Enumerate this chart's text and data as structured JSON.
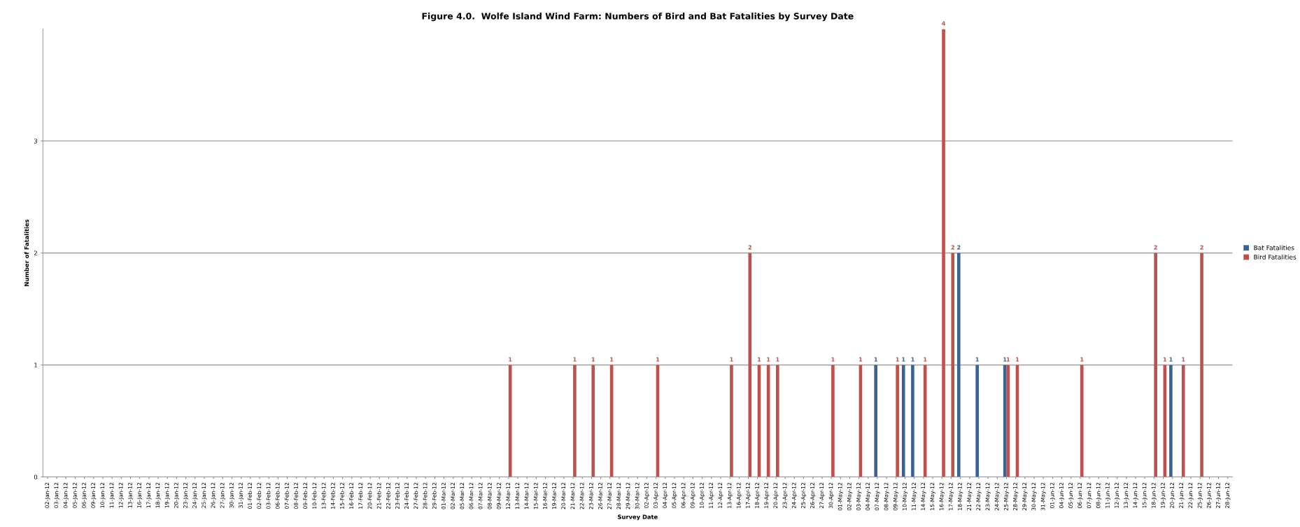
{
  "chart_data": {
    "type": "bar",
    "title": "Figure 4.0.  Wolfe Island Wind Farm: Numbers of Bird and Bat Fatalities by Survey Date",
    "xlabel": "Survey Date",
    "ylabel": "Number of Fatalities",
    "categories": [
      "02-Jan-12",
      "03-Jan-12",
      "04-Jan-12",
      "05-Jan-12",
      "06-Jan-12",
      "09-Jan-12",
      "10-Jan-12",
      "11-Jan-12",
      "12-Jan-12",
      "13-Jan-12",
      "16-Jan-12",
      "17-Jan-12",
      "18-Jan-12",
      "19-Jan-12",
      "20-Jan-12",
      "23-Jan-12",
      "24-Jan-12",
      "25-Jan-12",
      "26-Jan-12",
      "27-Jan-12",
      "30-Jan-12",
      "31-Jan-12",
      "01-Feb-12",
      "02-Feb-12",
      "03-Feb-12",
      "06-Feb-12",
      "07-Feb-12",
      "08-Feb-12",
      "09-Feb-12",
      "10-Feb-12",
      "13-Feb-12",
      "14-Feb-12",
      "15-Feb-12",
      "16-Feb-12",
      "17-Feb-12",
      "20-Feb-12",
      "21-Feb-12",
      "22-Feb-12",
      "23-Feb-12",
      "24-Feb-12",
      "27-Feb-12",
      "28-Feb-12",
      "29-Feb-12",
      "01-Mar-12",
      "02-Mar-12",
      "05-Mar-12",
      "06-Mar-12",
      "07-Mar-12",
      "08-Mar-12",
      "09-Mar-12",
      "12-Mar-12",
      "13-Mar-12",
      "14-Mar-12",
      "15-Mar-12",
      "16-Mar-12",
      "19-Mar-12",
      "20-Mar-12",
      "21-Mar-12",
      "22-Mar-12",
      "23-Mar-12",
      "26-Mar-12",
      "27-Mar-12",
      "28-Mar-12",
      "29-Mar-12",
      "30-Mar-12",
      "02-Apr-12",
      "03-Apr-12",
      "04-Apr-12",
      "05-Apr-12",
      "06-Apr-12",
      "09-Apr-12",
      "10-Apr-12",
      "11-Apr-12",
      "12-Apr-12",
      "13-Apr-12",
      "16-Apr-12",
      "17-Apr-12",
      "18-Apr-12",
      "19-Apr-12",
      "20-Apr-12",
      "23-Apr-12",
      "24-Apr-12",
      "25-Apr-12",
      "26-Apr-12",
      "27-Apr-12",
      "30-Apr-12",
      "01-May-12",
      "02-May-12",
      "03-May-12",
      "04-May-12",
      "07-May-12",
      "08-May-12",
      "09-May-12",
      "10-May-12",
      "11-May-12",
      "14-May-12",
      "15-May-12",
      "16-May-12",
      "17-May-12",
      "18-May-12",
      "21-May-12",
      "22-May-12",
      "23-May-12",
      "24-May-12",
      "25-May-12",
      "28-May-12",
      "29-May-12",
      "30-May-12",
      "31-May-12",
      "01-Jun-12",
      "04-Jun-12",
      "05-Jun-12",
      "06-Jun-12",
      "07-Jun-12",
      "08-Jun-12",
      "11-Jun-12",
      "12-Jun-12",
      "13-Jun-12",
      "14-Jun-12",
      "15-Jun-12",
      "18-Jun-12",
      "19-Jun-12",
      "20-Jun-12",
      "21-Jun-12",
      "22-Jun-12",
      "25-Jun-12",
      "26-Jun-12",
      "27-Jun-12",
      "28-Jun-12"
    ],
    "series": [
      {
        "name": "Bat Fatalities",
        "color": "#3a6296",
        "values": [
          null,
          null,
          null,
          null,
          null,
          null,
          null,
          null,
          null,
          null,
          null,
          null,
          null,
          null,
          null,
          null,
          null,
          null,
          null,
          null,
          null,
          null,
          null,
          null,
          null,
          null,
          null,
          null,
          null,
          null,
          null,
          null,
          null,
          null,
          null,
          null,
          null,
          null,
          null,
          null,
          null,
          null,
          null,
          null,
          null,
          null,
          null,
          null,
          null,
          null,
          null,
          null,
          null,
          null,
          null,
          null,
          null,
          null,
          null,
          null,
          null,
          null,
          null,
          null,
          null,
          null,
          null,
          null,
          null,
          null,
          null,
          null,
          null,
          null,
          null,
          null,
          null,
          null,
          null,
          null,
          null,
          null,
          null,
          null,
          null,
          null,
          null,
          null,
          null,
          null,
          1,
          null,
          null,
          1,
          1,
          null,
          null,
          null,
          null,
          2,
          null,
          1,
          null,
          null,
          1,
          null,
          null,
          null,
          null,
          null,
          null,
          null,
          null,
          null,
          null,
          null,
          null,
          null,
          null,
          null,
          null,
          null,
          1,
          null,
          null,
          null,
          null,
          null,
          null
        ]
      },
      {
        "name": "Bird Fatalities",
        "color": "#c0504d",
        "values": [
          null,
          null,
          null,
          null,
          null,
          null,
          null,
          null,
          null,
          null,
          null,
          null,
          null,
          null,
          null,
          null,
          null,
          null,
          null,
          null,
          null,
          null,
          null,
          null,
          null,
          null,
          null,
          null,
          null,
          null,
          null,
          null,
          null,
          null,
          null,
          null,
          null,
          null,
          null,
          null,
          null,
          null,
          null,
          null,
          null,
          null,
          null,
          null,
          null,
          null,
          1,
          null,
          null,
          null,
          null,
          null,
          null,
          1,
          null,
          1,
          null,
          1,
          null,
          null,
          null,
          null,
          1,
          null,
          null,
          null,
          null,
          null,
          null,
          null,
          1,
          null,
          2,
          1,
          1,
          1,
          null,
          null,
          null,
          null,
          null,
          1,
          null,
          null,
          1,
          null,
          null,
          null,
          1,
          null,
          null,
          1,
          null,
          4,
          2,
          null,
          null,
          null,
          null,
          null,
          1,
          1,
          null,
          null,
          null,
          null,
          null,
          null,
          1,
          null,
          null,
          null,
          null,
          null,
          null,
          null,
          2,
          1,
          null,
          1,
          null,
          2,
          null,
          null,
          null
        ]
      }
    ],
    "ylim": [
      0,
      4
    ],
    "yticks": [
      0,
      1,
      2,
      3
    ],
    "grid": "y",
    "legend": "right",
    "data_labels": true
  }
}
